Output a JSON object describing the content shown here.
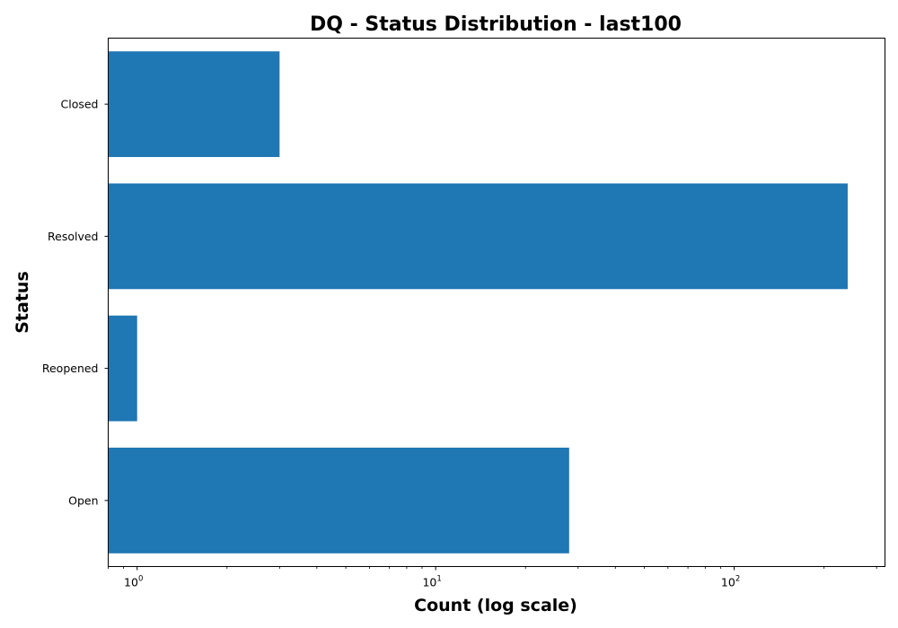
{
  "chart_data": {
    "type": "bar",
    "orientation": "horizontal",
    "title": "DQ - Status Distribution - last100",
    "xlabel": "Count (log scale)",
    "ylabel": "Status",
    "x_scale": "log",
    "xlim": [
      0.8,
      320
    ],
    "x_ticks": [
      {
        "base": "10",
        "exp": "0",
        "value": 1
      },
      {
        "base": "10",
        "exp": "1",
        "value": 10
      },
      {
        "base": "10",
        "exp": "2",
        "value": 100
      }
    ],
    "categories": [
      "Open",
      "Reopened",
      "Resolved",
      "Closed"
    ],
    "values": [
      28,
      1,
      240,
      3
    ],
    "bar_color": "#1f77b4",
    "grid": false,
    "legend": "none"
  }
}
